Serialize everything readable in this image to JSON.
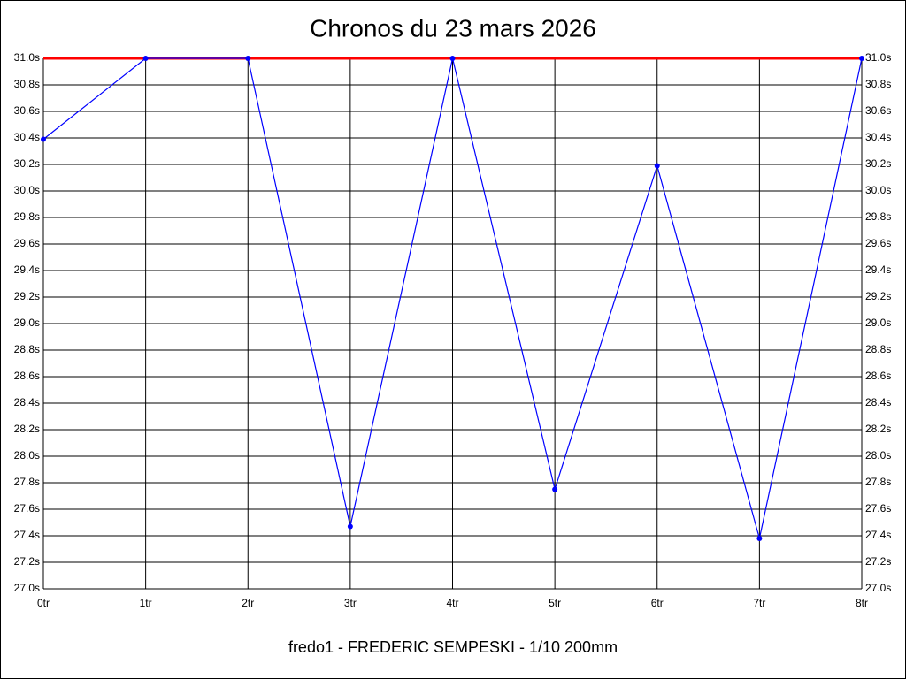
{
  "chart_data": {
    "type": "line",
    "title": "Chronos du 23 mars 2026",
    "subtitle": "fredo1 - FREDERIC SEMPESKI - 1/10 200mm",
    "categories": [
      "0tr",
      "1tr",
      "2tr",
      "3tr",
      "4tr",
      "5tr",
      "6tr",
      "7tr",
      "8tr"
    ],
    "series": [
      {
        "color": "#0000ff",
        "values": [
          30.39,
          31.0,
          31.0,
          27.47,
          31.0,
          27.75,
          30.19,
          27.38,
          31.0
        ]
      }
    ],
    "reference_line": {
      "value": 31.0,
      "color": "#ff0000"
    },
    "ylim": [
      27.0,
      31.0
    ],
    "yticks": [
      {
        "value": 27.0,
        "label": "27.0s"
      },
      {
        "value": 27.2,
        "label": "27.2s"
      },
      {
        "value": 27.4,
        "label": "27.4s"
      },
      {
        "value": 27.6,
        "label": "27.6s"
      },
      {
        "value": 27.8,
        "label": "27.8s"
      },
      {
        "value": 28.0,
        "label": "28.0s"
      },
      {
        "value": 28.2,
        "label": "28.2s"
      },
      {
        "value": 28.4,
        "label": "28.4s"
      },
      {
        "value": 28.6,
        "label": "28.6s"
      },
      {
        "value": 28.8,
        "label": "28.8s"
      },
      {
        "value": 29.0,
        "label": "29.0s"
      },
      {
        "value": 29.2,
        "label": "29.2s"
      },
      {
        "value": 29.4,
        "label": "29.4s"
      },
      {
        "value": 29.6,
        "label": "29.6s"
      },
      {
        "value": 29.8,
        "label": "29.8s"
      },
      {
        "value": 30.0,
        "label": "30.0s"
      },
      {
        "value": 30.2,
        "label": "30.2s"
      },
      {
        "value": 30.4,
        "label": "30.4s"
      },
      {
        "value": 30.6,
        "label": "30.6s"
      },
      {
        "value": 30.8,
        "label": "30.8s"
      },
      {
        "value": 31.0,
        "label": "31.0s"
      }
    ],
    "grid": true
  }
}
